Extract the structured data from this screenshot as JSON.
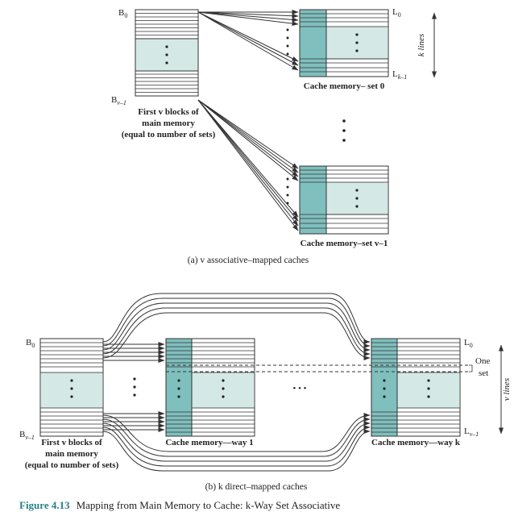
{
  "colors": {
    "block_fill": "#d4e9e6",
    "way_column": "#7fbfbd",
    "line": "#333333",
    "caption_accent": "#2b7f86"
  },
  "top": {
    "b0": "B",
    "b0_sub": "0",
    "bv1": "B",
    "bv1_sub": "v–1",
    "first_blocks_1": "First v blocks of",
    "first_blocks_2": "main memory",
    "first_blocks_3": "(equal to number of sets)",
    "l0": "L",
    "l0_sub": "0",
    "lk1": "L",
    "lk1_sub": "k–1",
    "k_lines": "k lines",
    "set0_label": "Cache memory– set 0",
    "setv1_label": "Cache memory–set v–1",
    "caption": "(a) v associative–mapped caches"
  },
  "bottom": {
    "b0": "B",
    "b0_sub": "0",
    "bv1": "B",
    "bv1_sub": "v–1",
    "first_blocks_1": "First v blocks of",
    "first_blocks_2": "main memory",
    "first_blocks_3": "(equal to number of sets)",
    "way1_label": "Cache memory—way 1",
    "wayk_label": "Cache memory—way k",
    "l0": "L",
    "l0_sub": "0",
    "lv1": "L",
    "lv1_sub": "v–1",
    "one_set_1": "One",
    "one_set_2": "set",
    "v_lines": "v lines",
    "ellipsis": "• • •",
    "caption": "(b) k direct–mapped caches"
  },
  "figure": {
    "number": "Figure 4.13",
    "title": "Mapping from Main Memory to Cache: k-Way Set Associative"
  }
}
